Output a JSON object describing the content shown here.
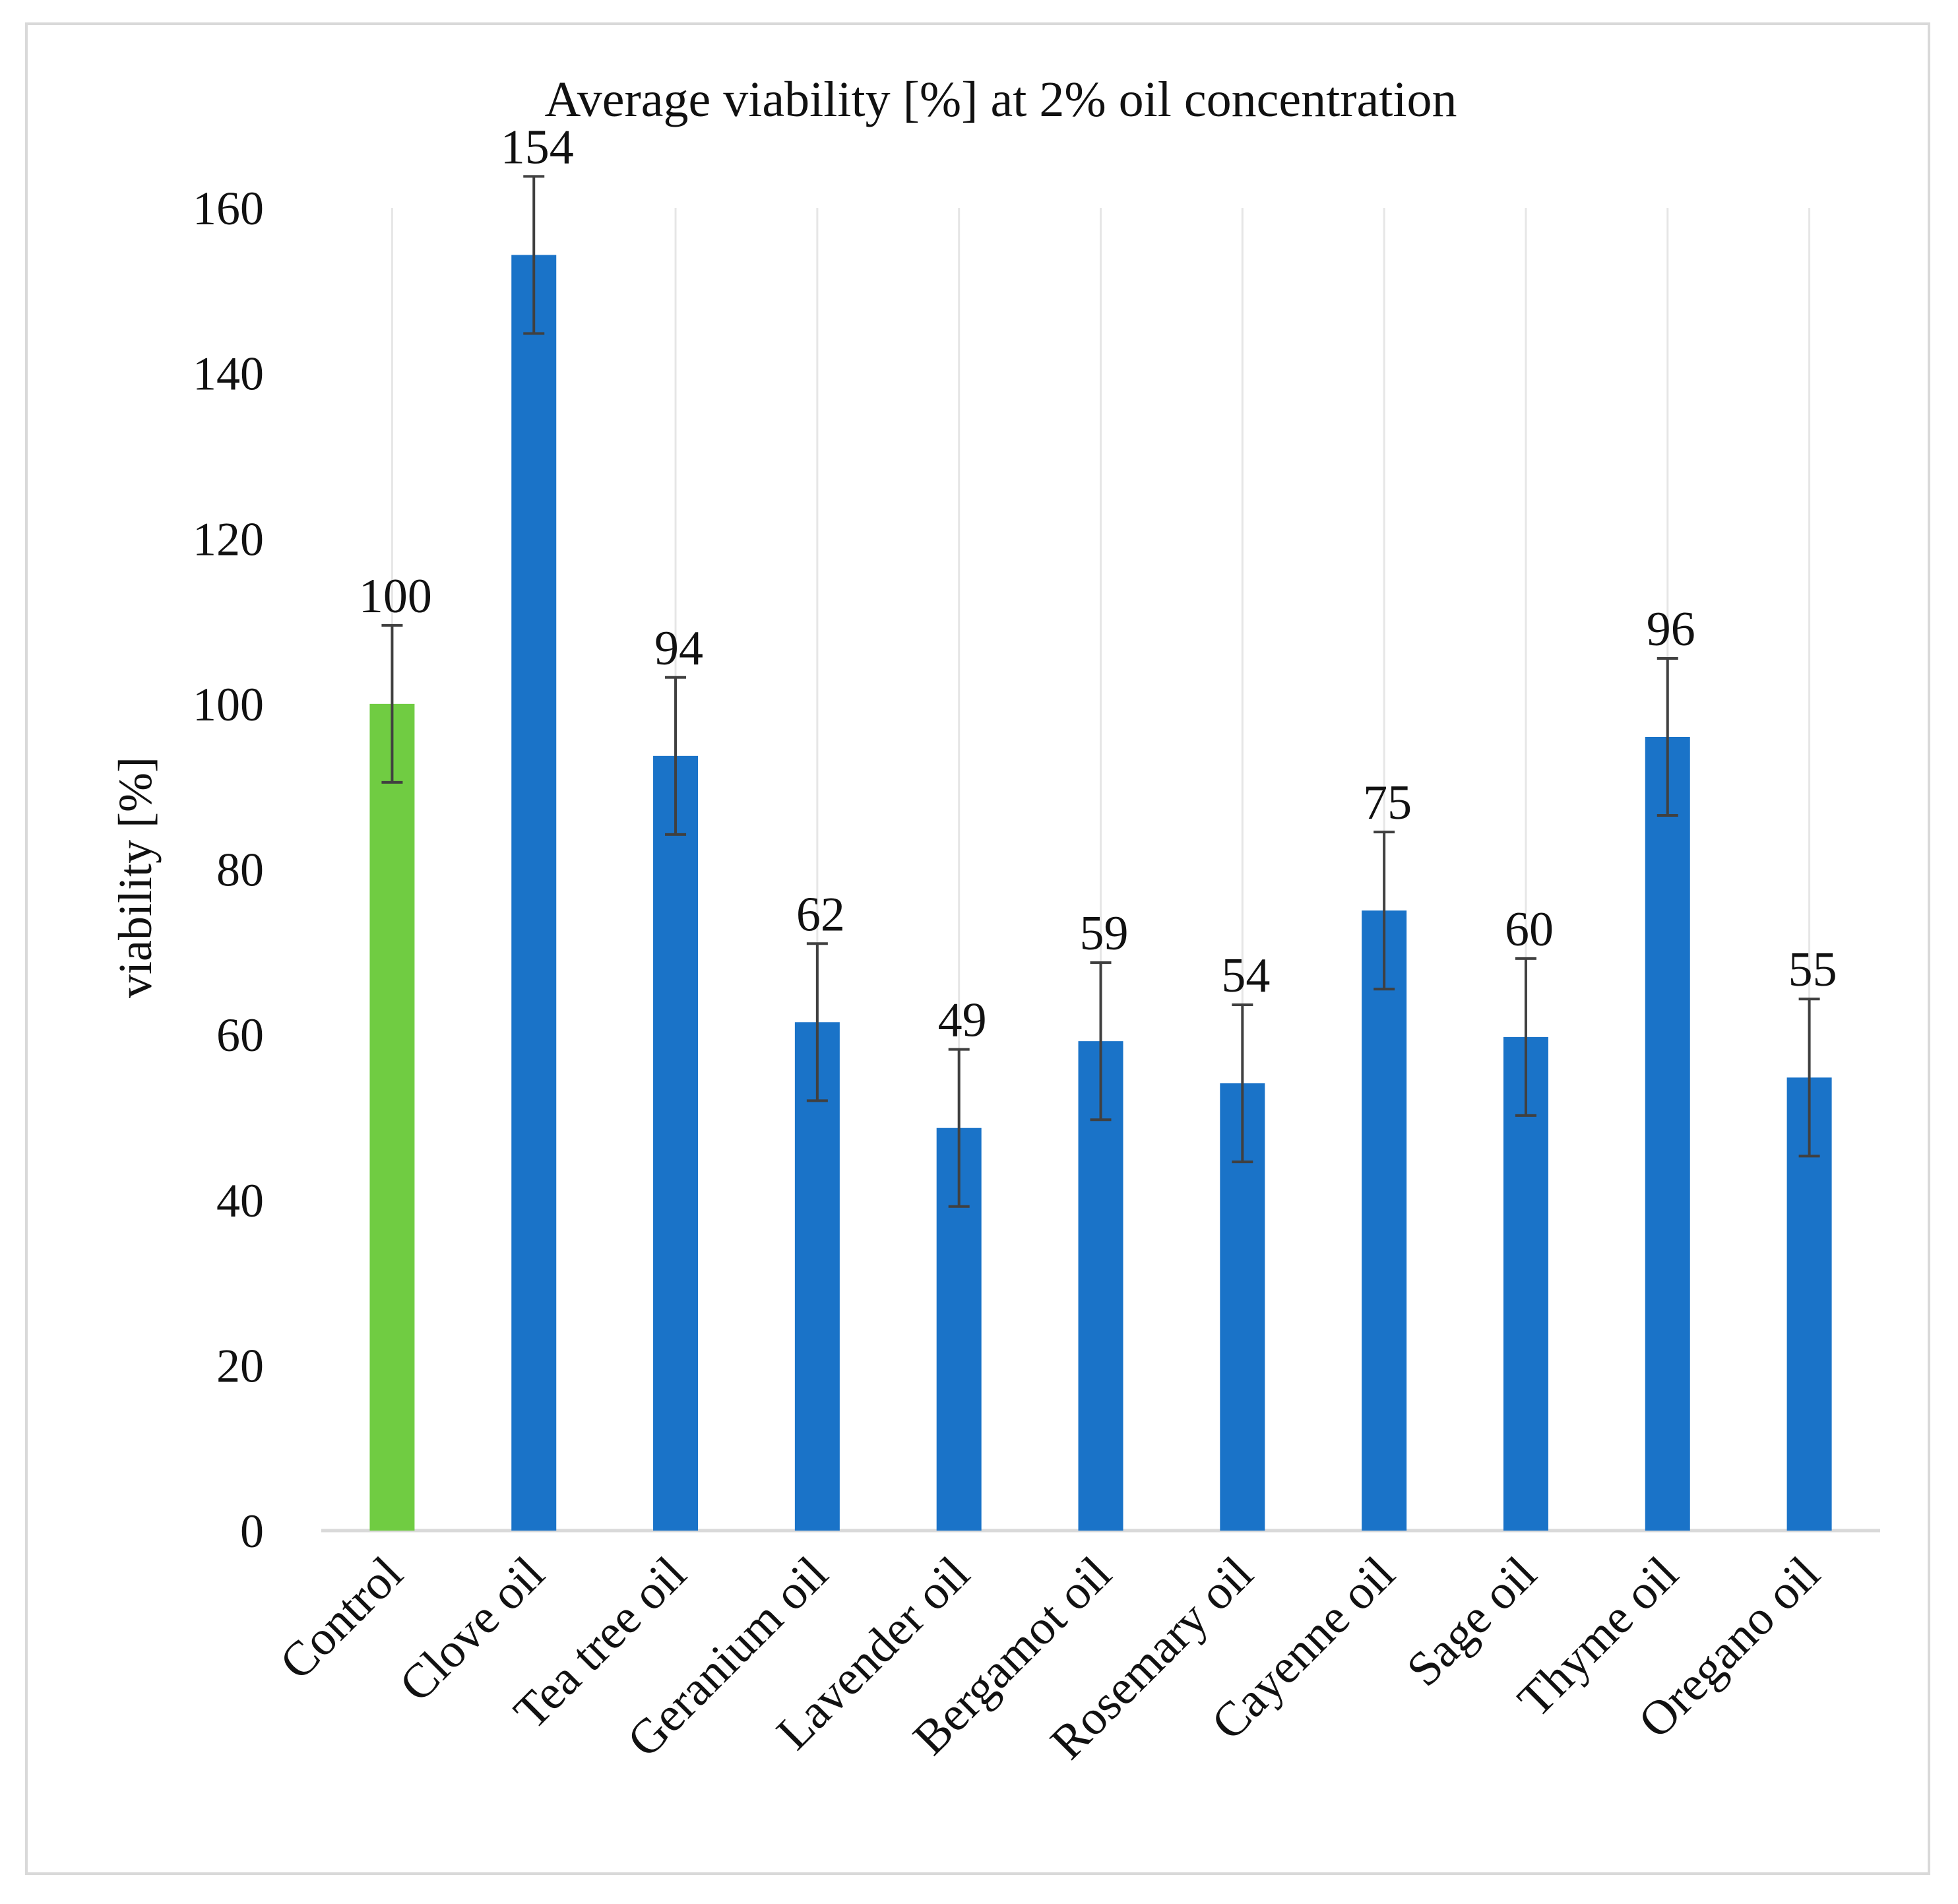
{
  "chart_data": {
    "type": "bar",
    "title": "Average viability [%] at 2% oil concentration",
    "xlabel": "",
    "ylabel": "viability [%]",
    "ylim": [
      0,
      160
    ],
    "yticks": [
      0,
      20,
      40,
      60,
      80,
      100,
      120,
      140,
      160
    ],
    "grid": "vertical-category-lines",
    "legend": "none",
    "categories": [
      "Control",
      "Clove oil",
      "Tea tree oil",
      "Geranium oil",
      "Lavender oil",
      "Bergamot oil",
      "Rosemary oil",
      "Cayenne oil",
      "Sage oil",
      "Thyme oil",
      "Oregano oil"
    ],
    "values": [
      100,
      154.3,
      93.7,
      61.5,
      48.7,
      59.2,
      54.1,
      75,
      59.7,
      96,
      54.8
    ],
    "data_labels": [
      "100",
      "154",
      "94",
      "62",
      "49",
      "59",
      "54",
      "75",
      "60",
      "96",
      "55"
    ],
    "error": [
      9.5,
      9.5,
      9.5,
      9.5,
      9.5,
      9.5,
      9.5,
      9.5,
      9.5,
      9.5,
      9.5
    ],
    "colors": {
      "control": "#70cc42",
      "oil": "#1a73c8",
      "error_bar": "#404040",
      "leader_line": "#a6a6a6",
      "grid": "#e6e6e6",
      "axis": "#d9d9d9"
    },
    "bar_color_keys": [
      "control",
      "oil",
      "oil",
      "oil",
      "oil",
      "oil",
      "oil",
      "oil",
      "oil",
      "oil",
      "oil"
    ]
  }
}
